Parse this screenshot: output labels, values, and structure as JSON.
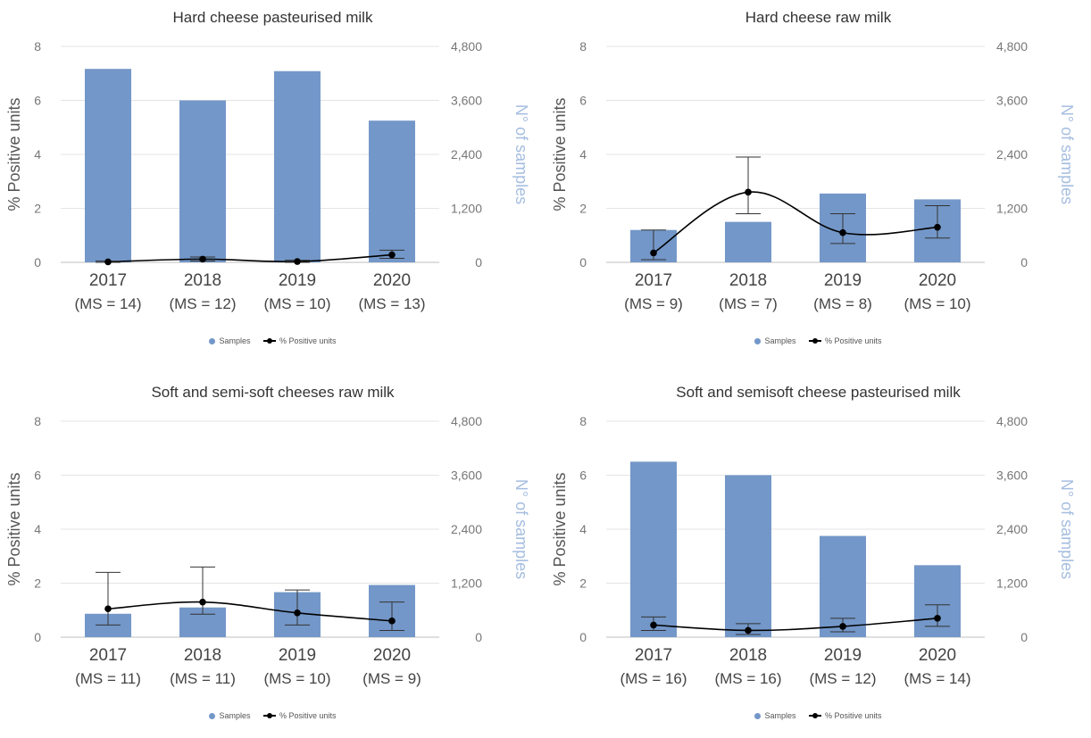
{
  "colors": {
    "bar": "#7397c8",
    "line": "#000000",
    "grid": "#e4e4e4",
    "axis_left": "#777777",
    "axis_right": "#a5bde0"
  },
  "legend": {
    "samples": "Samples",
    "positive": "% Positive units"
  },
  "ylabel_left": "% Positive units",
  "ylabel_right": "N° of samples",
  "chart_data": [
    {
      "type": "bar+line",
      "title": "Hard cheese pasteurised milk",
      "categories": [
        "2017",
        "2018",
        "2019",
        "2020"
      ],
      "category_sublabels": [
        "(MS = 14)",
        "(MS = 12)",
        "(MS = 10)",
        "(MS = 13)"
      ],
      "series": [
        {
          "name": "Samples",
          "axis": "right",
          "values": [
            4300,
            3600,
            4250,
            3150
          ]
        },
        {
          "name": "% Positive units",
          "axis": "left",
          "values": [
            0.02,
            0.12,
            0.03,
            0.28
          ],
          "error_low": [
            0.0,
            0.05,
            0.0,
            0.15
          ],
          "error_high": [
            0.05,
            0.2,
            0.08,
            0.45
          ]
        }
      ],
      "ylim_left": [
        0,
        8
      ],
      "yticks_left": [
        "0",
        "2",
        "4",
        "6",
        "8"
      ],
      "ylim_right": [
        0,
        4800
      ],
      "yticks_right": [
        "0",
        "1,200",
        "2,400",
        "3,600",
        "4,800"
      ],
      "ylabel_left": "% Positive units",
      "ylabel_right": "N° of samples",
      "grid": true,
      "legend": "bottom"
    },
    {
      "type": "bar+line",
      "title": "Hard cheese raw milk",
      "categories": [
        "2017",
        "2018",
        "2019",
        "2020"
      ],
      "category_sublabels": [
        "(MS = 9)",
        "(MS = 7)",
        "(MS = 8)",
        "(MS = 10)"
      ],
      "series": [
        {
          "name": "Samples",
          "axis": "right",
          "values": [
            720,
            900,
            1530,
            1400
          ]
        },
        {
          "name": "% Positive units",
          "axis": "left",
          "values": [
            0.35,
            2.6,
            1.1,
            1.3
          ],
          "error_low": [
            0.1,
            1.8,
            0.7,
            0.9
          ],
          "error_high": [
            1.2,
            3.9,
            1.8,
            2.1
          ]
        }
      ],
      "ylim_left": [
        0,
        8
      ],
      "yticks_left": [
        "0",
        "2",
        "4",
        "6",
        "8"
      ],
      "ylim_right": [
        0,
        4800
      ],
      "yticks_right": [
        "0",
        "1,200",
        "2,400",
        "3,600",
        "4,800"
      ],
      "ylabel_left": "% Positive units",
      "ylabel_right": "N° of samples",
      "grid": true,
      "legend": "bottom"
    },
    {
      "type": "bar+line",
      "title": "Soft and semi-soft cheeses raw milk",
      "categories": [
        "2017",
        "2018",
        "2019",
        "2020"
      ],
      "category_sublabels": [
        "(MS = 11)",
        "(MS = 11)",
        "(MS = 10)",
        "(MS = 9)"
      ],
      "series": [
        {
          "name": "Samples",
          "axis": "right",
          "values": [
            520,
            660,
            1000,
            1160
          ]
        },
        {
          "name": "% Positive units",
          "axis": "left",
          "values": [
            1.05,
            1.3,
            0.9,
            0.6
          ],
          "error_low": [
            0.45,
            0.85,
            0.45,
            0.25
          ],
          "error_high": [
            2.4,
            2.6,
            1.75,
            1.3
          ]
        }
      ],
      "ylim_left": [
        0,
        8
      ],
      "yticks_left": [
        "0",
        "2",
        "4",
        "6",
        "8"
      ],
      "ylim_right": [
        0,
        4800
      ],
      "yticks_right": [
        "0",
        "1,200",
        "2,400",
        "3,600",
        "4,800"
      ],
      "ylabel_left": "% Positive units",
      "ylabel_right": "N° of samples",
      "grid": true,
      "legend": "bottom"
    },
    {
      "type": "bar+line",
      "title": "Soft and semisoft cheese pasteurised milk",
      "categories": [
        "2017",
        "2018",
        "2019",
        "2020"
      ],
      "category_sublabels": [
        "(MS = 16)",
        "(MS = 16)",
        "(MS = 12)",
        "(MS = 14)"
      ],
      "series": [
        {
          "name": "Samples",
          "axis": "right",
          "values": [
            3900,
            3600,
            2250,
            1600
          ]
        },
        {
          "name": "% Positive units",
          "axis": "left",
          "values": [
            0.45,
            0.25,
            0.4,
            0.7
          ],
          "error_low": [
            0.25,
            0.1,
            0.2,
            0.4
          ],
          "error_high": [
            0.75,
            0.5,
            0.7,
            1.2
          ]
        }
      ],
      "ylim_left": [
        0,
        8
      ],
      "yticks_left": [
        "0",
        "2",
        "4",
        "6",
        "8"
      ],
      "ylim_right": [
        0,
        4800
      ],
      "yticks_right": [
        "0",
        "1,200",
        "2,400",
        "3,600",
        "4,800"
      ],
      "ylabel_left": "% Positive units",
      "ylabel_right": "N° of samples",
      "grid": true,
      "legend": "bottom"
    }
  ]
}
